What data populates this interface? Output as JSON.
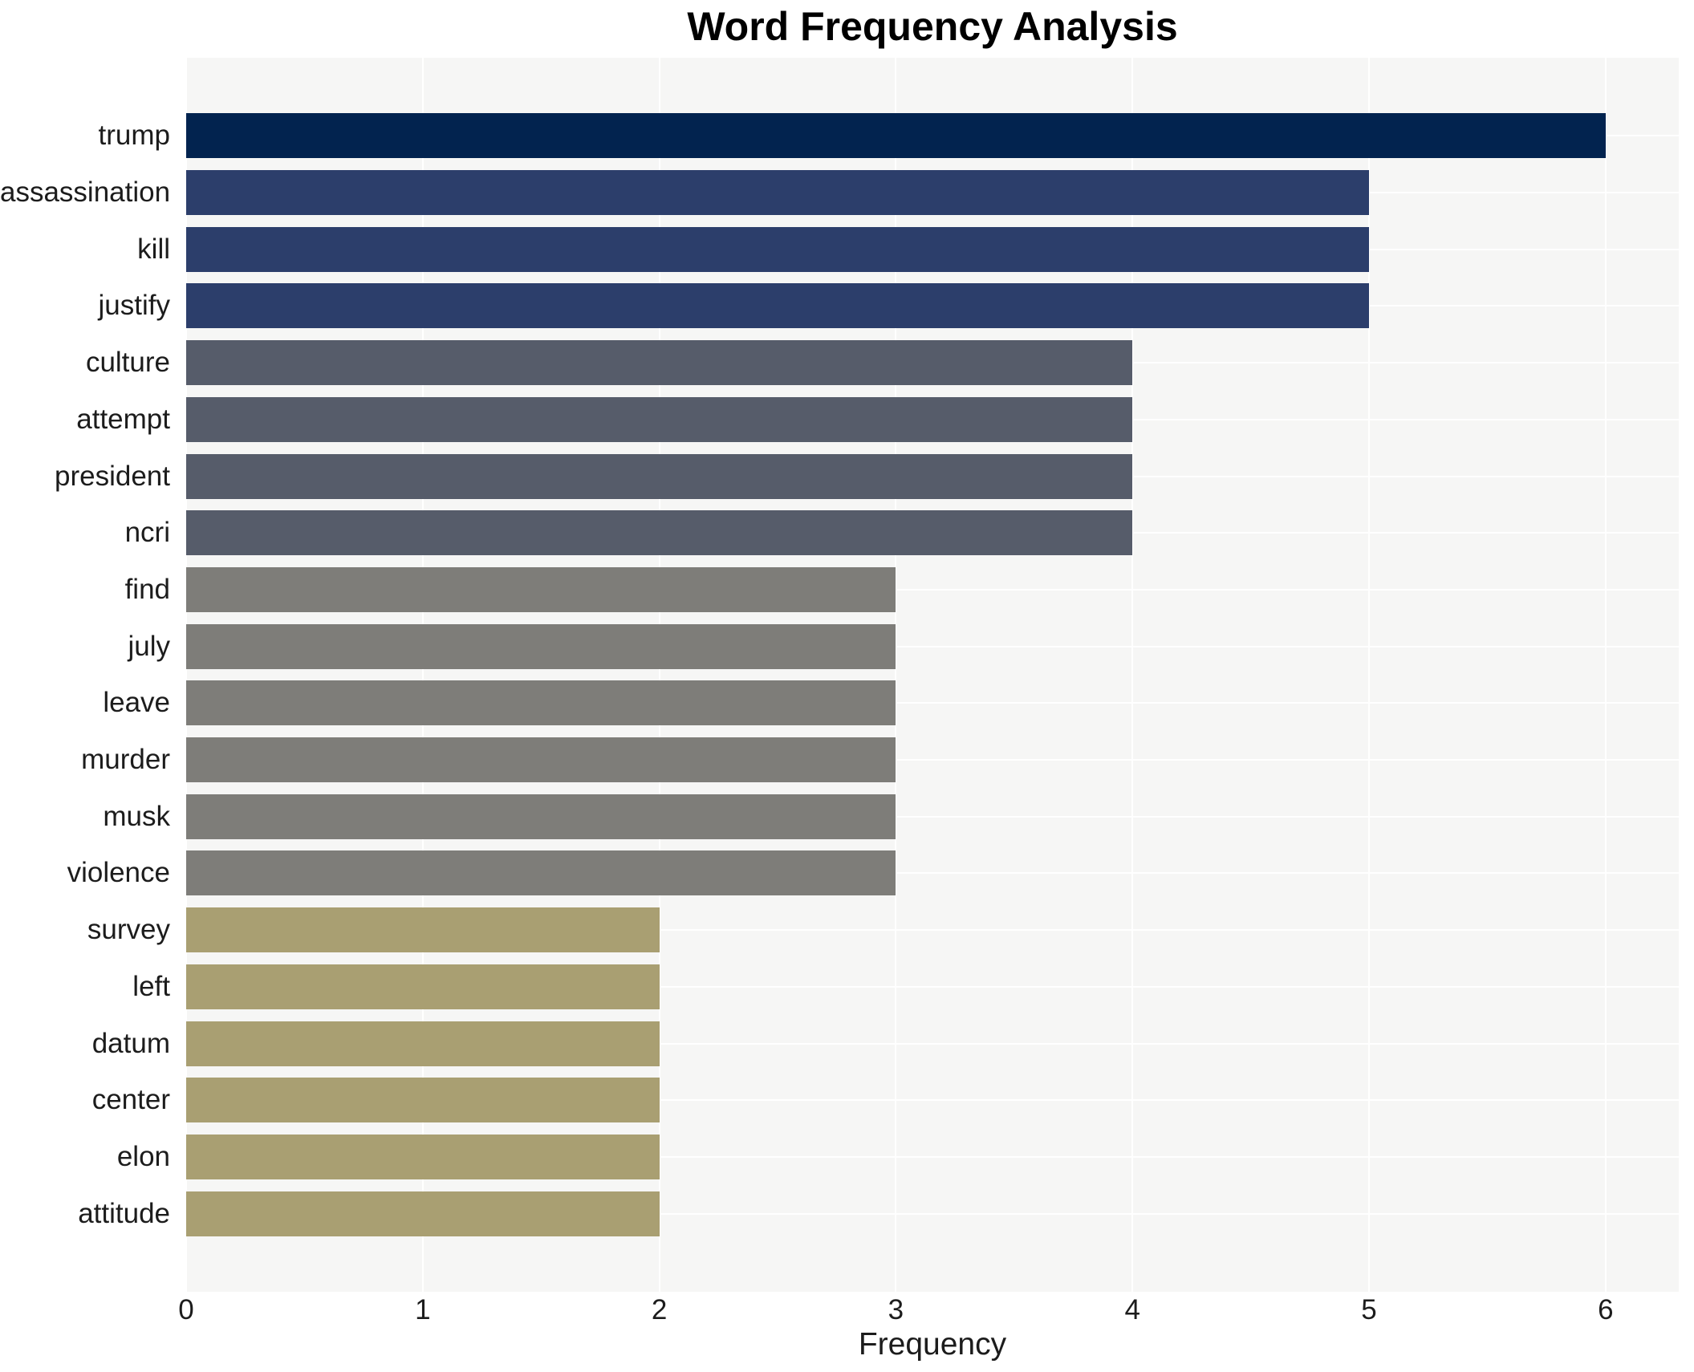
{
  "chart_data": {
    "type": "bar",
    "orientation": "horizontal",
    "title": "Word Frequency Analysis",
    "xlabel": "Frequency",
    "ylabel": "",
    "categories": [
      "trump",
      "assassination",
      "kill",
      "justify",
      "culture",
      "attempt",
      "president",
      "ncri",
      "find",
      "july",
      "leave",
      "murder",
      "musk",
      "violence",
      "survey",
      "left",
      "datum",
      "center",
      "elon",
      "attitude"
    ],
    "values": [
      6,
      5,
      5,
      5,
      4,
      4,
      4,
      4,
      3,
      3,
      3,
      3,
      3,
      3,
      2,
      2,
      2,
      2,
      2,
      2
    ],
    "x_ticks": [
      "0",
      "1",
      "2",
      "3",
      "4",
      "5",
      "6"
    ],
    "xlim": [
      0,
      6.3
    ],
    "grid": true,
    "legend_position": "none",
    "plot_background": "#f6f6f5",
    "grid_color": "#ffffff",
    "text_color": "#1c1c1c",
    "title_color": "#000000",
    "value_colors": {
      "6": "#02234f",
      "5": "#2c3e6b",
      "4": "#565c6a",
      "3": "#7e7d79",
      "2": "#a99f72"
    }
  }
}
